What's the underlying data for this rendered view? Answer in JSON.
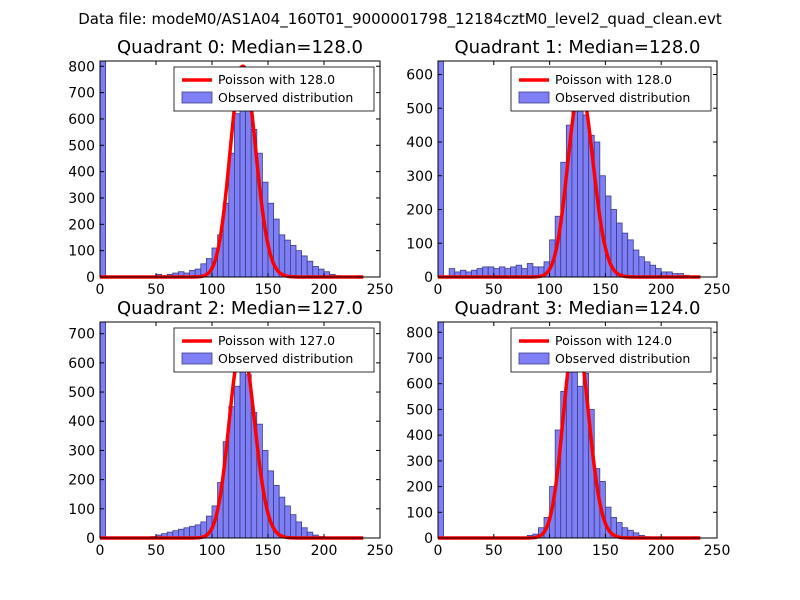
{
  "figure_title": "Data file: modeM0/AS1A04_160T01_9000001798_12184cztM0_level2_quad_clean.evt",
  "colors": {
    "bar_fill": "#7f7ff5",
    "bar_edge": "#3b3b8a",
    "poisson_line": "#ff0000"
  },
  "chart_data": [
    {
      "type": "bar",
      "title": "Quadrant 0: Median=128.0",
      "xlim": [
        0,
        250
      ],
      "ylim": [
        0,
        820
      ],
      "xticks": [
        0,
        50,
        100,
        150,
        200,
        250
      ],
      "yticks": [
        0,
        100,
        200,
        300,
        400,
        500,
        600,
        700,
        800
      ],
      "bin_width": 5,
      "bin_starts": [
        0,
        5,
        10,
        15,
        20,
        25,
        30,
        35,
        40,
        45,
        50,
        55,
        60,
        65,
        70,
        75,
        80,
        85,
        90,
        95,
        100,
        105,
        110,
        115,
        120,
        125,
        130,
        135,
        140,
        145,
        150,
        155,
        160,
        165,
        170,
        175,
        180,
        185,
        190,
        195,
        200,
        205,
        210,
        215,
        220,
        225,
        230
      ],
      "values": [
        820,
        0,
        0,
        0,
        0,
        0,
        0,
        0,
        0,
        0,
        10,
        5,
        10,
        15,
        20,
        15,
        25,
        30,
        50,
        70,
        110,
        160,
        280,
        470,
        620,
        800,
        670,
        560,
        470,
        360,
        280,
        220,
        160,
        140,
        120,
        100,
        80,
        60,
        40,
        30,
        20,
        10,
        5,
        3,
        2,
        1,
        1
      ],
      "median": 128.0,
      "legend": [
        "Poisson with 128.0",
        "Observed distribution"
      ],
      "legend_loc": "upper right"
    },
    {
      "type": "bar",
      "title": "Quadrant 1: Median=128.0",
      "xlim": [
        0,
        250
      ],
      "ylim": [
        0,
        640
      ],
      "xticks": [
        0,
        50,
        100,
        150,
        200,
        250
      ],
      "yticks": [
        0,
        100,
        200,
        300,
        400,
        500,
        600
      ],
      "bin_width": 5,
      "bin_starts": [
        0,
        5,
        10,
        15,
        20,
        25,
        30,
        35,
        40,
        45,
        50,
        55,
        60,
        65,
        70,
        75,
        80,
        85,
        90,
        95,
        100,
        105,
        110,
        115,
        120,
        125,
        130,
        135,
        140,
        145,
        150,
        155,
        160,
        165,
        170,
        175,
        180,
        185,
        190,
        195,
        200,
        205,
        210,
        215,
        220,
        225,
        230
      ],
      "values": [
        640,
        0,
        25,
        15,
        20,
        15,
        20,
        25,
        30,
        30,
        25,
        30,
        25,
        30,
        35,
        25,
        40,
        30,
        30,
        45,
        110,
        180,
        340,
        450,
        550,
        560,
        480,
        420,
        400,
        300,
        240,
        200,
        160,
        130,
        110,
        80,
        60,
        45,
        35,
        25,
        15,
        15,
        10,
        10,
        5,
        3,
        2
      ],
      "median": 128.0,
      "legend": [
        "Poisson with 128.0",
        "Observed distribution"
      ],
      "legend_loc": "upper right"
    },
    {
      "type": "bar",
      "title": "Quadrant 2: Median=127.0",
      "xlim": [
        0,
        250
      ],
      "ylim": [
        0,
        740
      ],
      "xticks": [
        0,
        50,
        100,
        150,
        200,
        250
      ],
      "yticks": [
        0,
        100,
        200,
        300,
        400,
        500,
        600,
        700
      ],
      "bin_width": 5,
      "bin_starts": [
        0,
        5,
        10,
        15,
        20,
        25,
        30,
        35,
        40,
        45,
        50,
        55,
        60,
        65,
        70,
        75,
        80,
        85,
        90,
        95,
        100,
        105,
        110,
        115,
        120,
        125,
        130,
        135,
        140,
        145,
        150,
        155,
        160,
        165,
        170,
        175,
        180,
        185,
        190,
        195,
        200,
        205,
        210,
        215,
        220,
        225,
        230
      ],
      "values": [
        740,
        0,
        0,
        0,
        0,
        0,
        0,
        0,
        0,
        5,
        10,
        15,
        20,
        25,
        30,
        35,
        40,
        45,
        55,
        75,
        110,
        190,
        330,
        450,
        520,
        660,
        560,
        430,
        390,
        300,
        230,
        180,
        140,
        110,
        80,
        55,
        35,
        20,
        10,
        5,
        3,
        2,
        1,
        1,
        0,
        0,
        0
      ],
      "median": 127.0,
      "legend": [
        "Poisson with 127.0",
        "Observed distribution"
      ],
      "legend_loc": "upper right"
    },
    {
      "type": "bar",
      "title": "Quadrant 3: Median=124.0",
      "xlim": [
        0,
        250
      ],
      "ylim": [
        0,
        840
      ],
      "xticks": [
        0,
        50,
        100,
        150,
        200,
        250
      ],
      "yticks": [
        0,
        100,
        200,
        300,
        400,
        500,
        600,
        700,
        800
      ],
      "bin_width": 5,
      "bin_starts": [
        0,
        5,
        10,
        15,
        20,
        25,
        30,
        35,
        40,
        45,
        50,
        55,
        60,
        65,
        70,
        75,
        80,
        85,
        90,
        95,
        100,
        105,
        110,
        115,
        120,
        125,
        130,
        135,
        140,
        145,
        150,
        155,
        160,
        165,
        170,
        175,
        180,
        185,
        190,
        195,
        200,
        205,
        210,
        215,
        220,
        225,
        230
      ],
      "values": [
        840,
        0,
        0,
        0,
        0,
        0,
        0,
        0,
        0,
        0,
        0,
        0,
        0,
        0,
        0,
        0,
        10,
        15,
        40,
        80,
        200,
        420,
        570,
        800,
        730,
        590,
        640,
        500,
        270,
        220,
        120,
        80,
        60,
        40,
        30,
        20,
        10,
        5,
        3,
        2,
        1,
        0,
        0,
        0,
        0,
        0,
        0
      ],
      "median": 124.0,
      "legend": [
        "Poisson with 124.0",
        "Observed distribution"
      ],
      "legend_loc": "upper right"
    }
  ]
}
